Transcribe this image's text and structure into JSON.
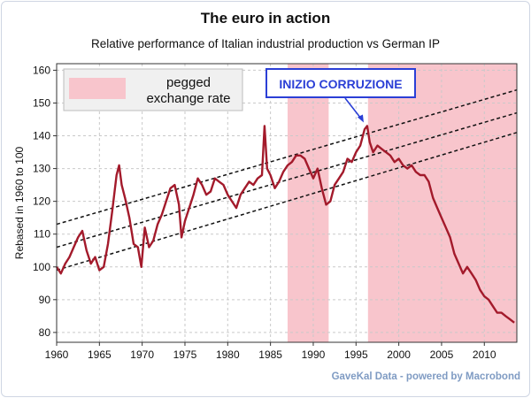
{
  "chart_data": {
    "type": "line",
    "title": "The euro in action",
    "subtitle": "Relative performance of Italian industrial production vs German IP",
    "ylabel": "Rebased in 1960 to 100",
    "xlabel": "",
    "xlim": [
      1960,
      2013.8
    ],
    "ylim": [
      77,
      162
    ],
    "x_ticks": [
      1960,
      1965,
      1970,
      1975,
      1980,
      1985,
      1990,
      1995,
      2000,
      2005,
      2010
    ],
    "y_ticks": [
      80,
      90,
      100,
      110,
      120,
      130,
      140,
      150,
      160
    ],
    "grid": true,
    "legend_position": "top-left",
    "legend_label": "pegged exchange rate",
    "annotation": {
      "text": "INIZIO CORRUZIONE",
      "x": 1996.0,
      "y": 143.5
    },
    "credit": "GaveKal Data - powered by Macrobond",
    "shaded_periods": [
      {
        "start": 1987.0,
        "end": 1991.8
      },
      {
        "start": 1996.4,
        "end": 2013.8
      }
    ],
    "trend_lines": [
      {
        "x": [
          1960,
          2013.8
        ],
        "y": [
          113,
          154
        ]
      },
      {
        "x": [
          1960,
          2013.8
        ],
        "y": [
          106,
          147
        ]
      },
      {
        "x": [
          1960,
          2013.8
        ],
        "y": [
          99,
          141
        ]
      }
    ],
    "series": [
      {
        "x": [
          1960.0,
          1960.5,
          1961.0,
          1961.5,
          1962.0,
          1962.5,
          1963.0,
          1963.5,
          1964.0,
          1964.5,
          1965.0,
          1965.5,
          1966.0,
          1966.5,
          1967.0,
          1967.3,
          1967.6,
          1968.0,
          1968.5,
          1969.0,
          1969.5,
          1969.9,
          1970.3,
          1970.8,
          1971.3,
          1971.8,
          1972.3,
          1972.8,
          1973.3,
          1973.8,
          1974.3,
          1974.6,
          1975.0,
          1975.5,
          1976.0,
          1976.5,
          1977.0,
          1977.5,
          1978.0,
          1978.5,
          1979.0,
          1979.5,
          1980.0,
          1980.5,
          1981.0,
          1981.5,
          1982.0,
          1982.5,
          1983.0,
          1983.5,
          1984.0,
          1984.3,
          1984.6,
          1985.0,
          1985.5,
          1986.0,
          1986.5,
          1987.0,
          1987.5,
          1988.0,
          1988.5,
          1989.0,
          1989.5,
          1990.0,
          1990.5,
          1991.0,
          1991.5,
          1992.0,
          1992.5,
          1993.0,
          1993.5,
          1994.0,
          1994.5,
          1995.0,
          1995.5,
          1996.0,
          1996.3,
          1996.6,
          1997.0,
          1997.5,
          1998.0,
          1998.5,
          1999.0,
          1999.5,
          2000.0,
          2000.5,
          2001.0,
          2001.5,
          2002.0,
          2002.5,
          2003.0,
          2003.5,
          2004.0,
          2004.5,
          2005.0,
          2005.5,
          2006.0,
          2006.5,
          2007.0,
          2007.5,
          2008.0,
          2008.5,
          2009.0,
          2009.5,
          2010.0,
          2010.5,
          2011.0,
          2011.5,
          2012.0,
          2012.5,
          2013.0,
          2013.5
        ],
        "y": [
          100,
          98,
          101,
          103,
          106,
          109,
          111,
          105,
          101,
          103,
          99,
          100,
          107,
          117,
          128,
          131,
          125,
          121,
          115,
          107,
          106,
          100,
          112,
          106,
          108,
          113,
          116,
          120,
          124,
          125,
          119,
          109,
          114,
          118,
          122,
          127,
          125,
          122,
          123,
          127,
          126,
          125,
          122,
          120,
          118,
          122,
          124,
          126,
          125,
          127,
          128,
          143,
          130,
          128,
          124,
          126,
          129,
          131,
          132,
          134,
          134,
          133,
          130,
          127,
          130,
          124,
          119,
          120,
          125,
          127,
          129,
          133,
          132,
          135,
          137,
          142,
          143,
          138,
          135,
          137,
          136,
          135,
          134,
          132,
          133,
          131,
          130,
          131,
          129,
          128,
          128,
          126,
          121,
          118,
          115,
          112,
          109,
          104,
          101,
          98,
          100,
          98,
          96,
          93,
          91,
          90,
          88,
          86,
          86,
          85,
          84,
          83
        ]
      }
    ]
  }
}
